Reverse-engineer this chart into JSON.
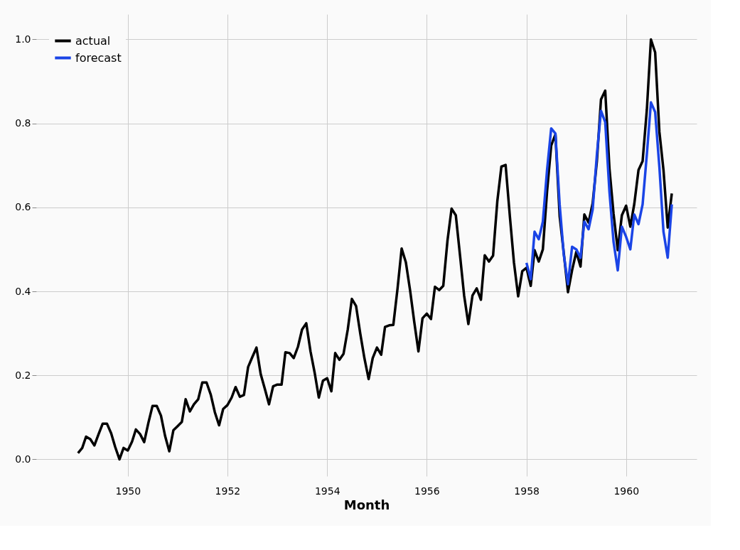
{
  "chart_data": {
    "type": "line",
    "xlabel": "Month",
    "x": [
      "1949-01",
      "1949-02",
      "1949-03",
      "1949-04",
      "1949-05",
      "1949-06",
      "1949-07",
      "1949-08",
      "1949-09",
      "1949-10",
      "1949-11",
      "1949-12",
      "1950-01",
      "1950-02",
      "1950-03",
      "1950-04",
      "1950-05",
      "1950-06",
      "1950-07",
      "1950-08",
      "1950-09",
      "1950-10",
      "1950-11",
      "1950-12",
      "1951-01",
      "1951-02",
      "1951-03",
      "1951-04",
      "1951-05",
      "1951-06",
      "1951-07",
      "1951-08",
      "1951-09",
      "1951-10",
      "1951-11",
      "1951-12",
      "1952-01",
      "1952-02",
      "1952-03",
      "1952-04",
      "1952-05",
      "1952-06",
      "1952-07",
      "1952-08",
      "1952-09",
      "1952-10",
      "1952-11",
      "1952-12",
      "1953-01",
      "1953-02",
      "1953-03",
      "1953-04",
      "1953-05",
      "1953-06",
      "1953-07",
      "1953-08",
      "1953-09",
      "1953-10",
      "1953-11",
      "1953-12",
      "1954-01",
      "1954-02",
      "1954-03",
      "1954-04",
      "1954-05",
      "1954-06",
      "1954-07",
      "1954-08",
      "1954-09",
      "1954-10",
      "1954-11",
      "1954-12",
      "1955-01",
      "1955-02",
      "1955-03",
      "1955-04",
      "1955-05",
      "1955-06",
      "1955-07",
      "1955-08",
      "1955-09",
      "1955-10",
      "1955-11",
      "1955-12",
      "1956-01",
      "1956-02",
      "1956-03",
      "1956-04",
      "1956-05",
      "1956-06",
      "1956-07",
      "1956-08",
      "1956-09",
      "1956-10",
      "1956-11",
      "1956-12",
      "1957-01",
      "1957-02",
      "1957-03",
      "1957-04",
      "1957-05",
      "1957-06",
      "1957-07",
      "1957-08",
      "1957-09",
      "1957-10",
      "1957-11",
      "1957-12",
      "1958-01",
      "1958-02",
      "1958-03",
      "1958-04",
      "1958-05",
      "1958-06",
      "1958-07",
      "1958-08",
      "1958-09",
      "1958-10",
      "1958-11",
      "1958-12",
      "1959-01",
      "1959-02",
      "1959-03",
      "1959-04",
      "1959-05",
      "1959-06",
      "1959-07",
      "1959-08",
      "1959-09",
      "1959-10",
      "1959-11",
      "1959-12",
      "1960-01",
      "1960-02",
      "1960-03",
      "1960-04",
      "1960-05",
      "1960-06",
      "1960-07",
      "1960-08",
      "1960-09",
      "1960-10",
      "1960-11",
      "1960-12"
    ],
    "series": [
      {
        "name": "actual",
        "color": "#000000",
        "values": [
          0.015,
          0.027,
          0.054,
          0.048,
          0.033,
          0.06,
          0.085,
          0.085,
          0.062,
          0.029,
          0.0,
          0.027,
          0.021,
          0.042,
          0.071,
          0.06,
          0.041,
          0.087,
          0.127,
          0.127,
          0.104,
          0.056,
          0.019,
          0.069,
          0.079,
          0.089,
          0.143,
          0.114,
          0.131,
          0.143,
          0.183,
          0.183,
          0.154,
          0.112,
          0.081,
          0.12,
          0.129,
          0.147,
          0.172,
          0.149,
          0.153,
          0.22,
          0.243,
          0.266,
          0.203,
          0.168,
          0.131,
          0.174,
          0.178,
          0.178,
          0.255,
          0.253,
          0.241,
          0.268,
          0.309,
          0.324,
          0.257,
          0.207,
          0.147,
          0.187,
          0.193,
          0.162,
          0.253,
          0.237,
          0.251,
          0.309,
          0.382,
          0.365,
          0.299,
          0.241,
          0.191,
          0.241,
          0.266,
          0.249,
          0.315,
          0.319,
          0.32,
          0.407,
          0.502,
          0.469,
          0.402,
          0.328,
          0.257,
          0.336,
          0.347,
          0.334,
          0.411,
          0.403,
          0.413,
          0.521,
          0.597,
          0.581,
          0.485,
          0.39,
          0.322,
          0.39,
          0.407,
          0.38,
          0.486,
          0.471,
          0.485,
          0.614,
          0.697,
          0.701,
          0.579,
          0.469,
          0.388,
          0.448,
          0.456,
          0.413,
          0.498,
          0.471,
          0.5,
          0.639,
          0.747,
          0.774,
          0.579,
          0.492,
          0.398,
          0.45,
          0.494,
          0.459,
          0.583,
          0.564,
          0.61,
          0.71,
          0.857,
          0.878,
          0.693,
          0.585,
          0.498,
          0.581,
          0.604,
          0.554,
          0.608,
          0.689,
          0.71,
          0.832,
          1.0,
          0.969,
          0.78,
          0.689,
          0.552,
          0.633
        ]
      },
      {
        "name": "forecast",
        "color": "#1a44e6",
        "x": [
          "1958-01",
          "1958-02",
          "1958-03",
          "1958-04",
          "1958-05",
          "1958-06",
          "1958-07",
          "1958-08",
          "1958-09",
          "1958-10",
          "1958-11",
          "1958-12",
          "1959-01",
          "1959-02",
          "1959-03",
          "1959-04",
          "1959-05",
          "1959-06",
          "1959-07",
          "1959-08",
          "1959-09",
          "1959-10",
          "1959-11",
          "1959-12",
          "1960-01",
          "1960-02",
          "1960-03",
          "1960-04",
          "1960-05",
          "1960-06",
          "1960-07",
          "1960-08",
          "1960-09",
          "1960-10",
          "1960-11",
          "1960-12"
        ],
        "values": [
          0.468,
          0.429,
          0.542,
          0.524,
          0.566,
          0.69,
          0.788,
          0.776,
          0.607,
          0.488,
          0.417,
          0.506,
          0.5,
          0.48,
          0.566,
          0.548,
          0.595,
          0.726,
          0.83,
          0.803,
          0.637,
          0.518,
          0.45,
          0.554,
          0.53,
          0.5,
          0.583,
          0.56,
          0.607,
          0.726,
          0.85,
          0.827,
          0.696,
          0.542,
          0.48,
          0.607
        ]
      }
    ],
    "xlim": [
      "1948-03",
      "1961-06"
    ],
    "xticks": [
      "1950",
      "1952",
      "1954",
      "1956",
      "1958",
      "1960"
    ],
    "ylim": [
      -0.04,
      1.06
    ],
    "yticks": [
      {
        "value": 0,
        "label": "0.0"
      },
      {
        "value": 0.2,
        "label": "0.2"
      },
      {
        "value": 0.4,
        "label": "0.4"
      },
      {
        "value": 0.6,
        "label": "0.6"
      },
      {
        "value": 0.8,
        "label": "0.8"
      },
      {
        "value": 1.0,
        "label": "1.0"
      }
    ],
    "grid": true,
    "legend": "top left",
    "line_style": "solid",
    "marker": "none"
  }
}
